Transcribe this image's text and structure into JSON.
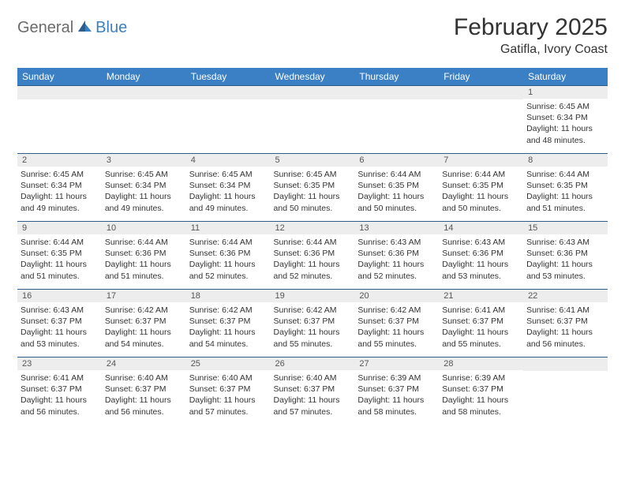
{
  "logo": {
    "general": "General",
    "blue": "Blue"
  },
  "title": "February 2025",
  "location": "Gatifla, Ivory Coast",
  "accent_color": "#3b7fc4",
  "header_bg": "#3b7fc4",
  "header_text": "#ffffff",
  "border_color": "#2f5d8a",
  "daynum_bg": "#ededed",
  "weekdays": [
    "Sunday",
    "Monday",
    "Tuesday",
    "Wednesday",
    "Thursday",
    "Friday",
    "Saturday"
  ],
  "weeks": [
    [
      {
        "n": "",
        "sr": "",
        "ss": "",
        "dl": ""
      },
      {
        "n": "",
        "sr": "",
        "ss": "",
        "dl": ""
      },
      {
        "n": "",
        "sr": "",
        "ss": "",
        "dl": ""
      },
      {
        "n": "",
        "sr": "",
        "ss": "",
        "dl": ""
      },
      {
        "n": "",
        "sr": "",
        "ss": "",
        "dl": ""
      },
      {
        "n": "",
        "sr": "",
        "ss": "",
        "dl": ""
      },
      {
        "n": "1",
        "sr": "Sunrise: 6:45 AM",
        "ss": "Sunset: 6:34 PM",
        "dl": "Daylight: 11 hours and 48 minutes."
      }
    ],
    [
      {
        "n": "2",
        "sr": "Sunrise: 6:45 AM",
        "ss": "Sunset: 6:34 PM",
        "dl": "Daylight: 11 hours and 49 minutes."
      },
      {
        "n": "3",
        "sr": "Sunrise: 6:45 AM",
        "ss": "Sunset: 6:34 PM",
        "dl": "Daylight: 11 hours and 49 minutes."
      },
      {
        "n": "4",
        "sr": "Sunrise: 6:45 AM",
        "ss": "Sunset: 6:34 PM",
        "dl": "Daylight: 11 hours and 49 minutes."
      },
      {
        "n": "5",
        "sr": "Sunrise: 6:45 AM",
        "ss": "Sunset: 6:35 PM",
        "dl": "Daylight: 11 hours and 50 minutes."
      },
      {
        "n": "6",
        "sr": "Sunrise: 6:44 AM",
        "ss": "Sunset: 6:35 PM",
        "dl": "Daylight: 11 hours and 50 minutes."
      },
      {
        "n": "7",
        "sr": "Sunrise: 6:44 AM",
        "ss": "Sunset: 6:35 PM",
        "dl": "Daylight: 11 hours and 50 minutes."
      },
      {
        "n": "8",
        "sr": "Sunrise: 6:44 AM",
        "ss": "Sunset: 6:35 PM",
        "dl": "Daylight: 11 hours and 51 minutes."
      }
    ],
    [
      {
        "n": "9",
        "sr": "Sunrise: 6:44 AM",
        "ss": "Sunset: 6:35 PM",
        "dl": "Daylight: 11 hours and 51 minutes."
      },
      {
        "n": "10",
        "sr": "Sunrise: 6:44 AM",
        "ss": "Sunset: 6:36 PM",
        "dl": "Daylight: 11 hours and 51 minutes."
      },
      {
        "n": "11",
        "sr": "Sunrise: 6:44 AM",
        "ss": "Sunset: 6:36 PM",
        "dl": "Daylight: 11 hours and 52 minutes."
      },
      {
        "n": "12",
        "sr": "Sunrise: 6:44 AM",
        "ss": "Sunset: 6:36 PM",
        "dl": "Daylight: 11 hours and 52 minutes."
      },
      {
        "n": "13",
        "sr": "Sunrise: 6:43 AM",
        "ss": "Sunset: 6:36 PM",
        "dl": "Daylight: 11 hours and 52 minutes."
      },
      {
        "n": "14",
        "sr": "Sunrise: 6:43 AM",
        "ss": "Sunset: 6:36 PM",
        "dl": "Daylight: 11 hours and 53 minutes."
      },
      {
        "n": "15",
        "sr": "Sunrise: 6:43 AM",
        "ss": "Sunset: 6:36 PM",
        "dl": "Daylight: 11 hours and 53 minutes."
      }
    ],
    [
      {
        "n": "16",
        "sr": "Sunrise: 6:43 AM",
        "ss": "Sunset: 6:37 PM",
        "dl": "Daylight: 11 hours and 53 minutes."
      },
      {
        "n": "17",
        "sr": "Sunrise: 6:42 AM",
        "ss": "Sunset: 6:37 PM",
        "dl": "Daylight: 11 hours and 54 minutes."
      },
      {
        "n": "18",
        "sr": "Sunrise: 6:42 AM",
        "ss": "Sunset: 6:37 PM",
        "dl": "Daylight: 11 hours and 54 minutes."
      },
      {
        "n": "19",
        "sr": "Sunrise: 6:42 AM",
        "ss": "Sunset: 6:37 PM",
        "dl": "Daylight: 11 hours and 55 minutes."
      },
      {
        "n": "20",
        "sr": "Sunrise: 6:42 AM",
        "ss": "Sunset: 6:37 PM",
        "dl": "Daylight: 11 hours and 55 minutes."
      },
      {
        "n": "21",
        "sr": "Sunrise: 6:41 AM",
        "ss": "Sunset: 6:37 PM",
        "dl": "Daylight: 11 hours and 55 minutes."
      },
      {
        "n": "22",
        "sr": "Sunrise: 6:41 AM",
        "ss": "Sunset: 6:37 PM",
        "dl": "Daylight: 11 hours and 56 minutes."
      }
    ],
    [
      {
        "n": "23",
        "sr": "Sunrise: 6:41 AM",
        "ss": "Sunset: 6:37 PM",
        "dl": "Daylight: 11 hours and 56 minutes."
      },
      {
        "n": "24",
        "sr": "Sunrise: 6:40 AM",
        "ss": "Sunset: 6:37 PM",
        "dl": "Daylight: 11 hours and 56 minutes."
      },
      {
        "n": "25",
        "sr": "Sunrise: 6:40 AM",
        "ss": "Sunset: 6:37 PM",
        "dl": "Daylight: 11 hours and 57 minutes."
      },
      {
        "n": "26",
        "sr": "Sunrise: 6:40 AM",
        "ss": "Sunset: 6:37 PM",
        "dl": "Daylight: 11 hours and 57 minutes."
      },
      {
        "n": "27",
        "sr": "Sunrise: 6:39 AM",
        "ss": "Sunset: 6:37 PM",
        "dl": "Daylight: 11 hours and 58 minutes."
      },
      {
        "n": "28",
        "sr": "Sunrise: 6:39 AM",
        "ss": "Sunset: 6:37 PM",
        "dl": "Daylight: 11 hours and 58 minutes."
      },
      {
        "n": "",
        "sr": "",
        "ss": "",
        "dl": ""
      }
    ]
  ]
}
